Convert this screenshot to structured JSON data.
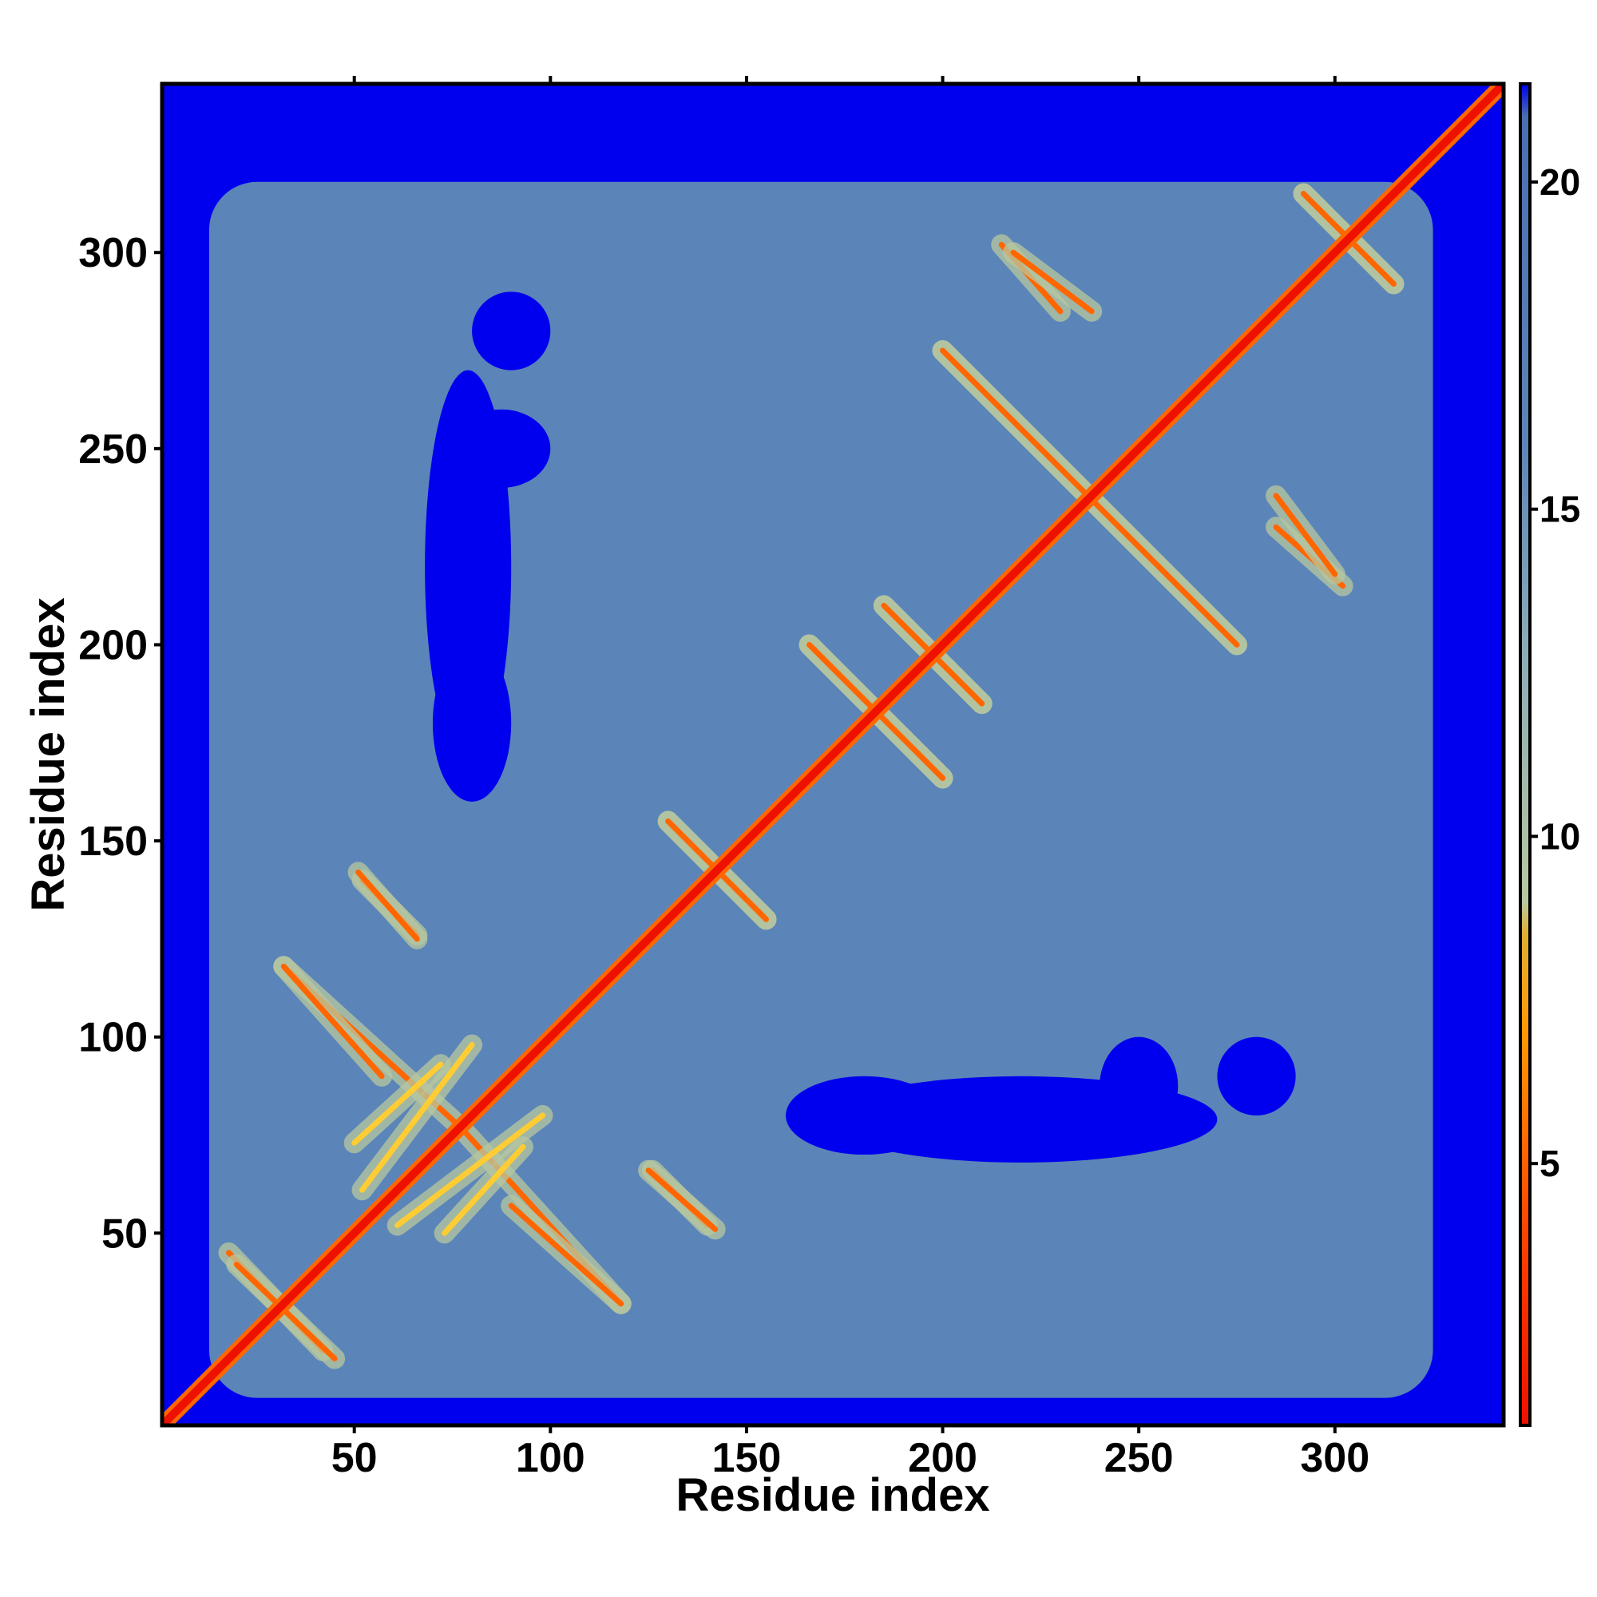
{
  "chart_data": {
    "type": "heatmap",
    "title": "",
    "xlabel": "Residue index",
    "ylabel": "Residue index",
    "xlim": [
      1,
      343
    ],
    "ylim": [
      1,
      343
    ],
    "x_ticks": [
      50,
      100,
      150,
      200,
      250,
      300
    ],
    "y_ticks": [
      50,
      100,
      150,
      200,
      250,
      300
    ],
    "colorbar": {
      "ticks": [
        5,
        10,
        15,
        20
      ],
      "range": [
        1,
        21.5
      ],
      "colors": [
        {
          "value": 1,
          "color": "#ee1100"
        },
        {
          "value": 4,
          "color": "#ff4400"
        },
        {
          "value": 7,
          "color": "#ff9900"
        },
        {
          "value": 8.5,
          "color": "#e0b030"
        },
        {
          "value": 9,
          "color": "#b8c8a0"
        },
        {
          "value": 13,
          "color": "#8aaab8"
        },
        {
          "value": 16,
          "color": "#5b85b8"
        },
        {
          "value": 21,
          "color": "#4a6fb0"
        },
        {
          "value": 21.5,
          "color": "#0000ee"
        }
      ]
    },
    "background_color": "#0000ee",
    "diagonal_color": "#ee1100",
    "mid_color": "#5b85b8",
    "contact_band_color": "#b8c8a0",
    "contact_features": [
      {
        "kind": "antiparallel",
        "x_range": [
          18,
          42
        ],
        "y_range": [
          20,
          45
        ],
        "color": "#ff6600"
      },
      {
        "kind": "antiparallel",
        "x_range": [
          32,
          76
        ],
        "y_range": [
          78,
          118
        ],
        "color": "#ff6600"
      },
      {
        "kind": "antiparallel",
        "x_range": [
          52,
          66
        ],
        "y_range": [
          126,
          140
        ],
        "color": "#ff6600"
      },
      {
        "kind": "antiparallel",
        "x_range": [
          90,
          118
        ],
        "y_range": [
          32,
          57
        ],
        "color": "#ff6600"
      },
      {
        "kind": "antiparallel",
        "x_range": [
          125,
          142
        ],
        "y_range": [
          51,
          66
        ],
        "color": "#ff6600"
      },
      {
        "kind": "antiparallel",
        "x_range": [
          130,
          155
        ],
        "y_range": [
          130,
          155
        ],
        "color": "#ff6600"
      },
      {
        "kind": "antiparallel",
        "x_range": [
          166,
          200
        ],
        "y_range": [
          166,
          200
        ],
        "color": "#ff6600"
      },
      {
        "kind": "antiparallel",
        "x_range": [
          185,
          210
        ],
        "y_range": [
          185,
          210
        ],
        "color": "#ff6600"
      },
      {
        "kind": "antiparallel",
        "x_range": [
          200,
          275
        ],
        "y_range": [
          200,
          275
        ],
        "color": "#ff6600"
      },
      {
        "kind": "antiparallel",
        "x_range": [
          215,
          230
        ],
        "y_range": [
          285,
          302
        ],
        "color": "#ff6600"
      },
      {
        "kind": "antiparallel",
        "x_range": [
          292,
          315
        ],
        "y_range": [
          292,
          315
        ],
        "color": "#ff6600"
      },
      {
        "kind": "antiparallel",
        "x_range": [
          285,
          300
        ],
        "y_range": [
          218,
          238
        ],
        "color": "#ff6600"
      },
      {
        "kind": "parallel",
        "x_range": [
          52,
          80
        ],
        "y_range": [
          61,
          98
        ],
        "color": "#ffcc33"
      },
      {
        "kind": "parallel",
        "x_range": [
          73,
          93
        ],
        "y_range": [
          50,
          72
        ],
        "color": "#ffcc33"
      }
    ],
    "high_distance_regions": [
      {
        "x_range": [
          68,
          90
        ],
        "y_range": [
          170,
          270
        ]
      },
      {
        "x_range": [
          240,
          260
        ],
        "y_range": [
          75,
          100
        ]
      },
      {
        "x_range": [
          270,
          290
        ],
        "y_range": [
          80,
          100
        ]
      },
      {
        "x_range": [
          160,
          200
        ],
        "y_range": [
          70,
          90
        ]
      }
    ]
  }
}
